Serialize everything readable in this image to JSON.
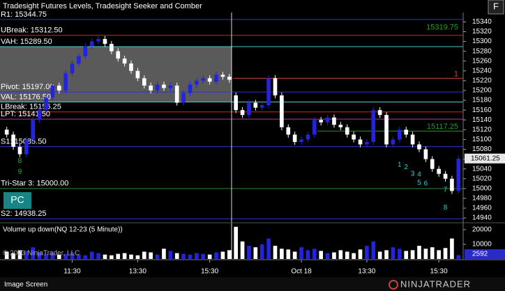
{
  "chart_data": {
    "type": "candlestick",
    "title": "Tradesight Futures Levels, Tradesight Seeker and Comber",
    "open": [
      15120,
      15110,
      15085,
      15070,
      15100,
      15140,
      15160,
      15185,
      15210,
      15200,
      15235,
      15255,
      15270,
      15290,
      15300,
      15305,
      15295,
      15280,
      15265,
      15255,
      15240,
      15225,
      15210,
      15200,
      15212,
      15205,
      15210,
      15175,
      15195,
      15212,
      15220,
      15225,
      15218,
      15232,
      15228,
      15190,
      15160,
      15150,
      15175,
      15165,
      15170,
      15225,
      15190,
      15125,
      15110,
      15095,
      15100,
      15110,
      15140,
      15135,
      15145,
      15130,
      15125,
      15110,
      15100,
      15090,
      15095,
      15160,
      15150,
      15090,
      15100,
      15120,
      15110,
      15090,
      15080,
      15060,
      15040,
      15030,
      15020,
      14995
    ],
    "high": [
      15126,
      15116,
      15091,
      15106,
      15146,
      15166,
      15191,
      15216,
      15216,
      15241,
      15261,
      15276,
      15296,
      15306,
      15311,
      15311,
      15301,
      15286,
      15271,
      15261,
      15246,
      15231,
      15216,
      15218,
      15218,
      15216,
      15216,
      15201,
      15218,
      15226,
      15231,
      15231,
      15238,
      15238,
      15234,
      15196,
      15166,
      15181,
      15181,
      15176,
      15231,
      15231,
      15196,
      15131,
      15116,
      15106,
      15116,
      15146,
      15146,
      15151,
      15151,
      15136,
      15131,
      15116,
      15106,
      15101,
      15166,
      15166,
      15156,
      15106,
      15126,
      15126,
      15116,
      15096,
      15086,
      15066,
      15046,
      15036,
      15026,
      15067
    ],
    "low": [
      15104,
      15079,
      15064,
      15064,
      15094,
      15134,
      15154,
      15179,
      15194,
      15194,
      15229,
      15249,
      15264,
      15284,
      15294,
      15289,
      15274,
      15259,
      15249,
      15234,
      15219,
      15204,
      15194,
      15194,
      15199,
      15199,
      15169,
      15169,
      15189,
      15206,
      15214,
      15212,
      15212,
      15222,
      15216,
      15154,
      15144,
      15144,
      15159,
      15159,
      15164,
      15184,
      15119,
      15104,
      15089,
      15089,
      15094,
      15104,
      15129,
      15129,
      15124,
      15119,
      15104,
      15094,
      15084,
      15084,
      15089,
      15144,
      15084,
      15084,
      15094,
      15104,
      15084,
      15074,
      15054,
      15034,
      15024,
      15014,
      14989,
      14989
    ],
    "close": [
      15110,
      15085,
      15070,
      15100,
      15140,
      15160,
      15185,
      15210,
      15200,
      15235,
      15255,
      15270,
      15290,
      15300,
      15305,
      15295,
      15280,
      15265,
      15255,
      15240,
      15225,
      15210,
      15200,
      15212,
      15205,
      15210,
      15175,
      15195,
      15212,
      15220,
      15225,
      15218,
      15232,
      15228,
      15222,
      15160,
      15150,
      15175,
      15165,
      15170,
      15225,
      15190,
      15125,
      15110,
      15095,
      15100,
      15110,
      15140,
      15135,
      15145,
      15130,
      15125,
      15110,
      15100,
      15090,
      15095,
      15160,
      15150,
      15090,
      15100,
      15120,
      15110,
      15090,
      15080,
      15060,
      15040,
      15030,
      15020,
      14995,
      15061
    ],
    "up_color": "#2323e0",
    "down_color": "#ffffff",
    "ylim": [
      14933,
      15359
    ],
    "yticks": [
      15340,
      15320,
      15300,
      15280,
      15260,
      15240,
      15220,
      15200,
      15180,
      15160,
      15140,
      15120,
      15100,
      15080,
      15060,
      15040,
      15020,
      15000,
      14980,
      14960,
      14940
    ],
    "time_labels": [
      {
        "index": 10,
        "label": "11:30"
      },
      {
        "index": 20,
        "label": "13:30"
      },
      {
        "index": 31,
        "label": "15:30"
      },
      {
        "index": 45,
        "label": "Oct 18"
      },
      {
        "index": 55,
        "label": "13:30"
      },
      {
        "index": 66,
        "label": "15:30"
      }
    ],
    "levels": [
      {
        "label": "R1: 15344.75",
        "value": 15344.75,
        "color": "#3030d8"
      },
      {
        "label": "UBreak: 15312.50",
        "value": 15312.5,
        "color": "#c03030"
      },
      {
        "label": "VAH: 15289.50",
        "value": 15289.5,
        "color": "#50c8c8"
      },
      {
        "label": "Pivot: 15197.00",
        "value": 15197,
        "color": "#3030d8"
      },
      {
        "label": "VAL: 15176.50",
        "value": 15176.5,
        "color": "#50c8c8"
      },
      {
        "label": "LBreak: 15156.25",
        "value": 15156.25,
        "color": "#c03030"
      },
      {
        "label": "LPT: 15141.50",
        "value": 15141.5,
        "color": "#a040a0"
      },
      {
        "label": "S1: 15085.50",
        "value": 15085.5,
        "color": "#3030d8"
      },
      {
        "label": "Tri-Star 3: 15000.00",
        "value": 15000,
        "color": "#2a8a2a"
      },
      {
        "label": "S2: 14938.25",
        "value": 14938.25,
        "color": "#3030d8"
      }
    ],
    "side_levels": [
      {
        "label": "15319.75",
        "value": 15319.75,
        "color": "#2a9a2a"
      },
      {
        "label": "15117.25",
        "value": 15117.25,
        "color": "#2a9a2a"
      },
      {
        "label": "1",
        "value": 15225,
        "color": "#d04040"
      }
    ],
    "value_area": {
      "top": 15289.5,
      "bottom": 15176.5,
      "color": "#5a5a5a"
    },
    "last_price": 15061.25,
    "annotations": [
      {
        "text": "8",
        "index": 2,
        "price": 15056,
        "color": "#2ab02a"
      },
      {
        "text": "9",
        "index": 2,
        "price": 15034,
        "color": "#2ab02a"
      },
      {
        "text": "1",
        "index": 60,
        "price": 15048,
        "color": "#30d0d0"
      },
      {
        "text": "2",
        "index": 61,
        "price": 15043,
        "color": "#30d0d0"
      },
      {
        "text": "3",
        "index": 62,
        "price": 15030,
        "color": "#30d0d0"
      },
      {
        "text": "4",
        "index": 63,
        "price": 15028,
        "color": "#30d0d0"
      },
      {
        "text": "5",
        "index": 63,
        "price": 15011,
        "color": "#30d0d0"
      },
      {
        "text": "6",
        "index": 64,
        "price": 15010,
        "color": "#30d0d0"
      },
      {
        "text": "7",
        "index": 67,
        "price": 14997,
        "color": "#30d0d0"
      },
      {
        "text": "8",
        "index": 67,
        "price": 14961,
        "color": "#30d0d0"
      }
    ],
    "volume": {
      "title": "Volume up down(NQ 12-23 (5 Minute))",
      "values": [
        5000,
        4000,
        6000,
        5500,
        8000,
        4500,
        3500,
        4000,
        3000,
        3500,
        4500,
        3000,
        2500,
        5000,
        4000,
        3000,
        2500,
        3500,
        4000,
        3000,
        2500,
        5000,
        4500,
        3000,
        7000,
        5500,
        4000,
        3500,
        3000,
        4000,
        3500,
        3000,
        4500,
        5000,
        6000,
        22000,
        12000,
        9000,
        8000,
        10000,
        14000,
        9000,
        7000,
        6500,
        5000,
        8000,
        6000,
        7000,
        5500,
        4000,
        4500,
        6000,
        5000,
        4000,
        6500,
        9000,
        12000,
        5000,
        6000,
        8000,
        7000,
        5500,
        6000,
        9000,
        7000,
        8000,
        6000,
        7500,
        14000,
        2592
      ],
      "ylim": [
        0,
        23800
      ],
      "yticks": [
        10000,
        20000
      ]
    }
  },
  "copyright": "© 2023 NinjaTrader, LLC",
  "button": "PC",
  "corner_button": "F",
  "tab": "Image Screen",
  "brand": "NINJATRADER"
}
